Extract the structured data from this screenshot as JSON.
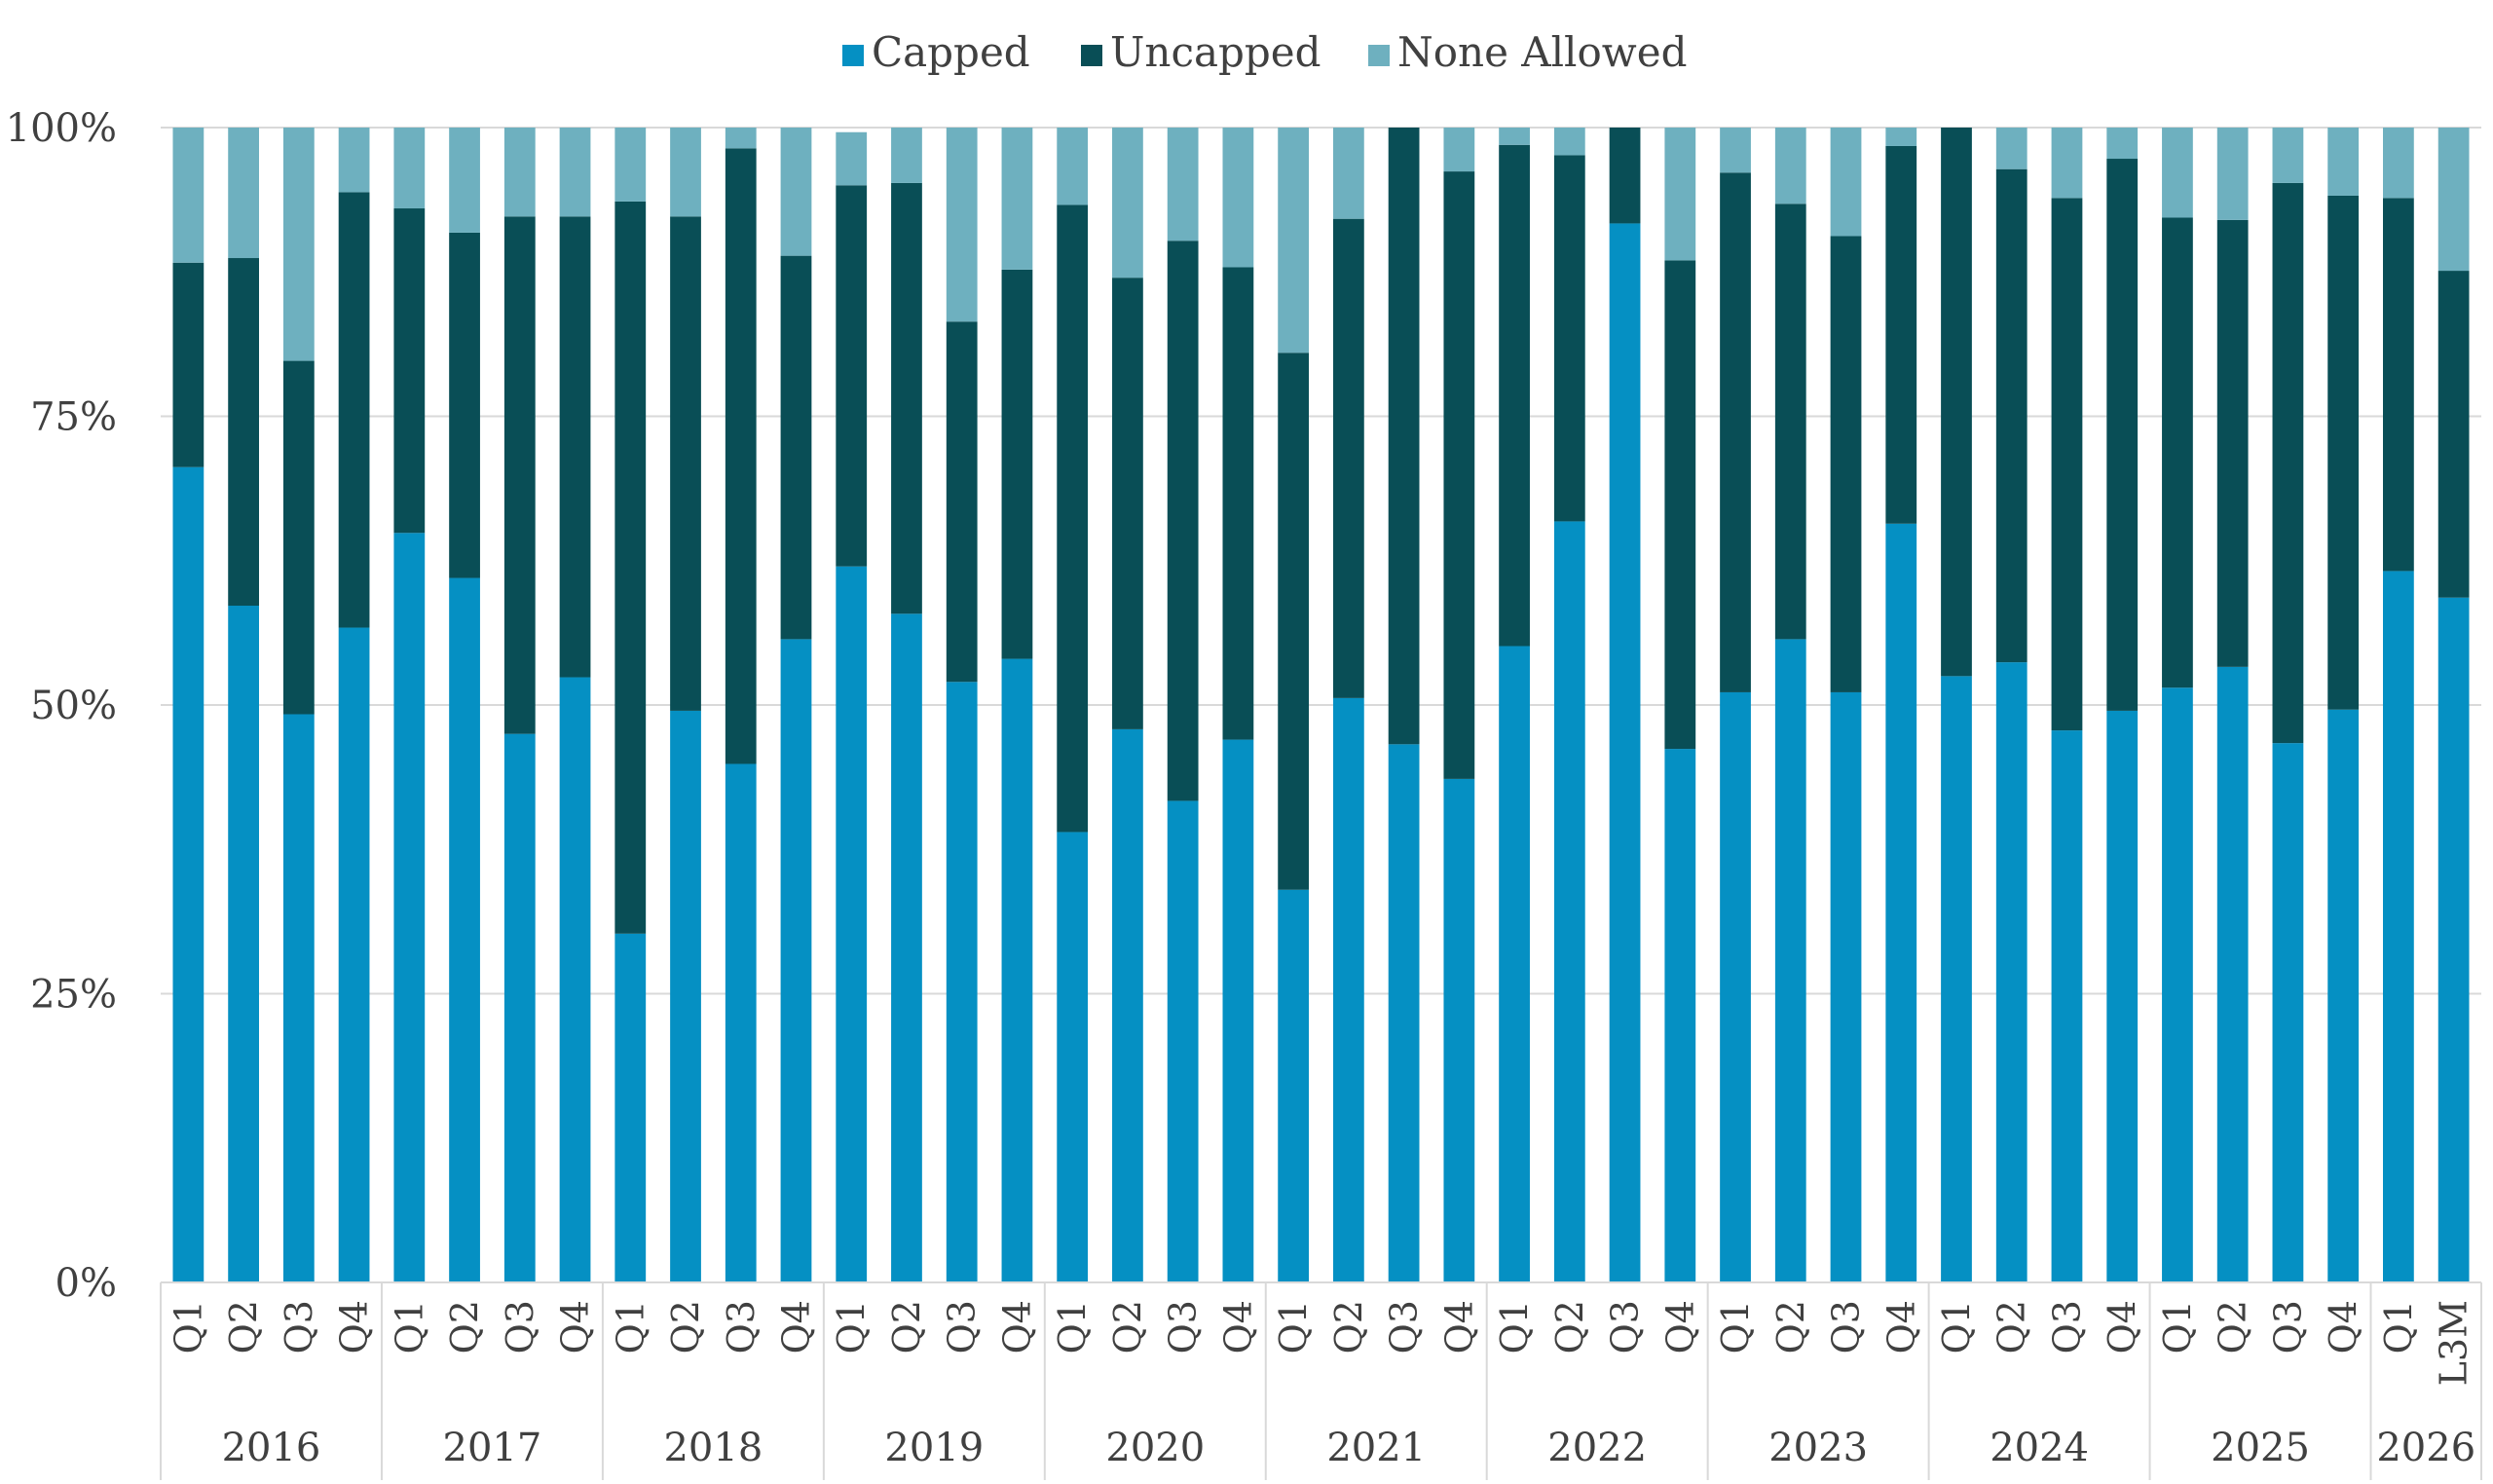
{
  "chart_data": {
    "type": "bar",
    "stacked": true,
    "percent": true,
    "title": "",
    "xlabel": "",
    "ylabel": "",
    "ylim": [
      0,
      100
    ],
    "yticks": [
      "0%",
      "25%",
      "50%",
      "75%",
      "100%"
    ],
    "legend": {
      "position": "top-center",
      "entries": [
        "Capped",
        "Uncapped",
        "None Allowed"
      ]
    },
    "grid": true,
    "colors": {
      "Capped": "#0590c3",
      "Uncapped": "#094e56",
      "None Allowed": "#6eb0bf"
    },
    "categories": [
      "Q1",
      "Q2",
      "Q3",
      "Q4",
      "Q1",
      "Q2",
      "Q3",
      "Q4",
      "Q1",
      "Q2",
      "Q3",
      "Q4",
      "Q1",
      "Q2",
      "Q3",
      "Q4",
      "Q1",
      "Q2",
      "Q3",
      "Q4",
      "Q1",
      "Q2",
      "Q3",
      "Q4",
      "Q1",
      "Q2",
      "Q3",
      "Q4",
      "Q1",
      "Q2",
      "Q3",
      "Q4",
      "Q1",
      "Q2",
      "Q3",
      "Q4",
      "Q1",
      "Q2",
      "Q3",
      "Q4",
      "Q1",
      "L3M"
    ],
    "groups": [
      {
        "label": "2016",
        "count": 4
      },
      {
        "label": "2017",
        "count": 4
      },
      {
        "label": "2018",
        "count": 4
      },
      {
        "label": "2019",
        "count": 4
      },
      {
        "label": "2020",
        "count": 4
      },
      {
        "label": "2021",
        "count": 4
      },
      {
        "label": "2022",
        "count": 4
      },
      {
        "label": "2023",
        "count": 4
      },
      {
        "label": "2024",
        "count": 4
      },
      {
        "label": "2025",
        "count": 4
      },
      {
        "label": "2026",
        "count": 2
      }
    ],
    "series": [
      {
        "name": "Capped",
        "values": [
          70.6,
          58.6,
          49.2,
          56.7,
          64.9,
          61.0,
          47.5,
          52.4,
          30.2,
          49.5,
          44.9,
          55.7,
          62.0,
          57.9,
          52.0,
          54.0,
          39.0,
          47.9,
          41.7,
          47.0,
          34.0,
          50.6,
          46.6,
          43.6,
          55.1,
          65.9,
          91.7,
          46.2,
          51.1,
          55.7,
          51.1,
          65.7,
          52.5,
          53.7,
          47.8,
          49.5,
          51.5,
          53.3,
          46.7,
          49.6,
          61.6,
          59.3
        ]
      },
      {
        "name": "Uncapped",
        "values": [
          17.7,
          30.1,
          30.6,
          37.7,
          28.1,
          29.9,
          44.8,
          39.9,
          63.4,
          42.8,
          53.3,
          33.2,
          33.0,
          37.3,
          31.2,
          33.7,
          54.3,
          39.1,
          48.5,
          40.9,
          46.5,
          41.5,
          53.4,
          52.6,
          43.4,
          31.7,
          8.3,
          42.3,
          45.0,
          37.7,
          39.5,
          32.7,
          47.5,
          42.7,
          46.1,
          47.8,
          40.7,
          38.7,
          48.5,
          44.5,
          32.3,
          28.3
        ]
      },
      {
        "name": "None Allowed",
        "values": [
          11.7,
          11.3,
          20.2,
          5.6,
          7.0,
          9.1,
          7.7,
          7.7,
          6.4,
          7.7,
          1.8,
          11.1,
          4.6,
          4.8,
          16.8,
          12.3,
          6.7,
          13.0,
          9.8,
          12.1,
          19.5,
          7.9,
          0.0,
          3.8,
          1.5,
          2.4,
          0.0,
          11.5,
          3.9,
          6.6,
          9.4,
          1.6,
          0.0,
          3.6,
          6.1,
          2.7,
          7.8,
          8.0,
          4.8,
          5.9,
          6.1,
          12.4
        ]
      }
    ]
  }
}
